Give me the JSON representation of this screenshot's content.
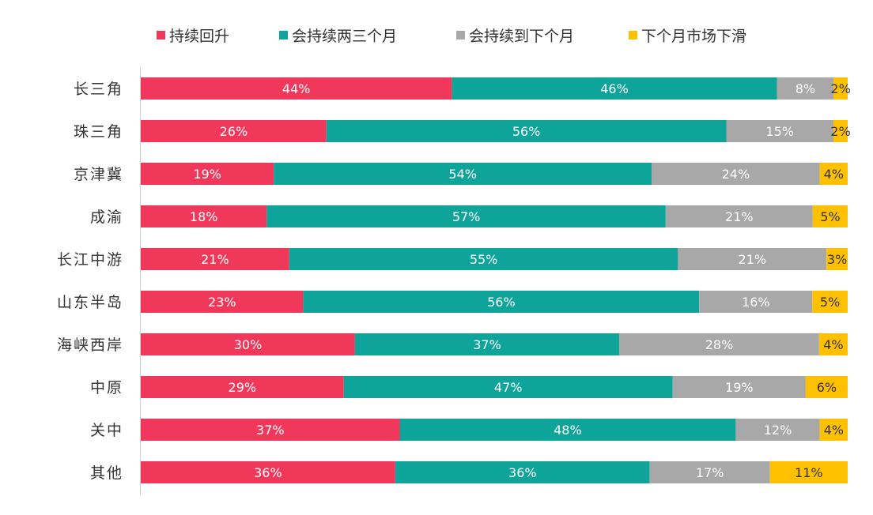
{
  "chart_data": {
    "type": "bar",
    "orientation": "horizontal",
    "stacked": true,
    "normalized_percent": true,
    "categories": [
      "长三角",
      "珠三角",
      "京津冀",
      "成渝",
      "长江中游",
      "山东半岛",
      "海峡西岸",
      "中原",
      "关中",
      "其他"
    ],
    "series": [
      {
        "name": "持续回升",
        "color": "#F0385A",
        "values": [
          44,
          26,
          19,
          18,
          21,
          23,
          30,
          29,
          37,
          36
        ]
      },
      {
        "name": "会持续两三个月",
        "color": "#0FA49A",
        "values": [
          46,
          56,
          54,
          57,
          55,
          56,
          37,
          47,
          48,
          36
        ]
      },
      {
        "name": "会持续到下个月",
        "color": "#A8A8A8",
        "values": [
          8,
          15,
          24,
          21,
          21,
          16,
          28,
          19,
          12,
          17
        ]
      },
      {
        "name": "下个月市场下滑",
        "color": "#FFC000",
        "values": [
          2,
          2,
          4,
          5,
          3,
          5,
          4,
          6,
          4,
          11
        ]
      }
    ],
    "data_label_suffix": "%",
    "legend_position": "top",
    "grid": false
  }
}
